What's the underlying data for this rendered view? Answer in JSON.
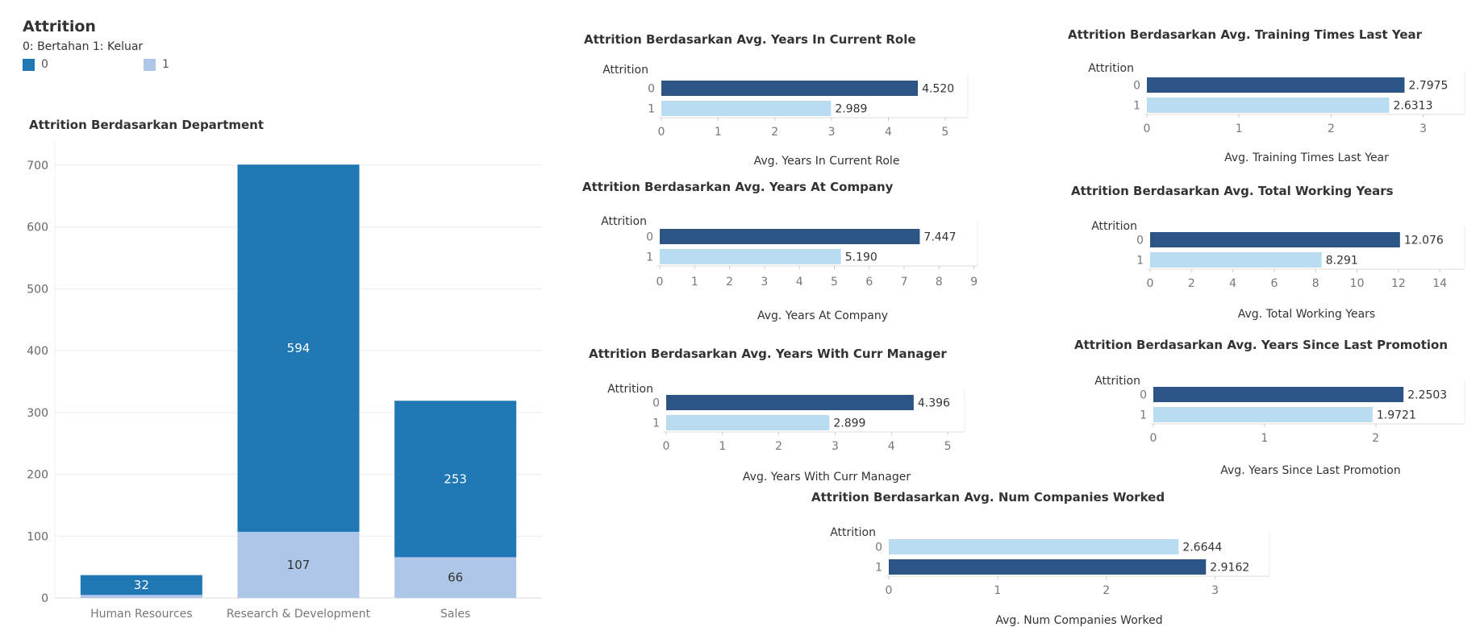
{
  "colors": {
    "dark_blue": "#2c5485",
    "light_blue": "#b9dcf0",
    "dept_dark": "#1f77b4",
    "dept_light": "#aec7e8"
  },
  "legend": {
    "title": "Attrition",
    "subtitle": "0: Bertahan 1: Keluar",
    "items": [
      {
        "label": "0",
        "color": "#1f77b4"
      },
      {
        "label": "1",
        "color": "#aec7e8"
      }
    ]
  },
  "chart_data": [
    {
      "id": "department",
      "type": "bar",
      "stacked": true,
      "title": "Attrition Berdasarkan Department",
      "categories": [
        "Human Resources",
        "Research & Development",
        "Sales"
      ],
      "series": [
        {
          "name": "0",
          "values": [
            32,
            594,
            253
          ]
        },
        {
          "name": "1",
          "values": [
            5,
            107,
            66
          ]
        }
      ],
      "value_labels": {
        "0": [
          "32",
          "594",
          "253"
        ],
        "1": [
          "",
          "107",
          "66"
        ]
      },
      "ylim": [
        0,
        700
      ],
      "yticks": [
        "0",
        "100",
        "200",
        "300",
        "400",
        "500",
        "600",
        "700"
      ],
      "grid": true
    },
    {
      "id": "years-current-role",
      "type": "bar",
      "orientation": "horizontal",
      "title": "Attrition Berdasarkan Avg. Years In Current Role",
      "ylabel": "Attrition",
      "xlabel": "Avg. Years In Current Role",
      "categories": [
        "0",
        "1"
      ],
      "values": [
        4.52,
        2.989
      ],
      "value_labels": [
        "4.520",
        "2.989"
      ],
      "bar_colors": [
        "#2c5485",
        "#b9dcf0"
      ],
      "xlim": [
        0,
        5.4
      ],
      "xticks": [
        "0",
        "1",
        "2",
        "3",
        "4",
        "5"
      ]
    },
    {
      "id": "years-at-company",
      "type": "bar",
      "orientation": "horizontal",
      "title": "Attrition Berdasarkan Avg. Years At Company",
      "ylabel": "Attrition",
      "xlabel": "Avg. Years At Company",
      "categories": [
        "0",
        "1"
      ],
      "values": [
        7.447,
        5.19
      ],
      "value_labels": [
        "7.447",
        "5.190"
      ],
      "bar_colors": [
        "#2c5485",
        "#b9dcf0"
      ],
      "xlim": [
        0,
        9.1
      ],
      "xticks": [
        "0",
        "1",
        "2",
        "3",
        "4",
        "5",
        "6",
        "7",
        "8",
        "9"
      ]
    },
    {
      "id": "years-curr-manager",
      "type": "bar",
      "orientation": "horizontal",
      "title": "Attrition Berdasarkan Avg. Years With Curr Manager",
      "ylabel": "Attrition",
      "xlabel": "Avg. Years With Curr Manager",
      "categories": [
        "0",
        "1"
      ],
      "values": [
        4.396,
        2.899
      ],
      "value_labels": [
        "4.396",
        "2.899"
      ],
      "bar_colors": [
        "#2c5485",
        "#b9dcf0"
      ],
      "xlim": [
        0,
        5.3
      ],
      "xticks": [
        "0",
        "1",
        "2",
        "3",
        "4",
        "5"
      ]
    },
    {
      "id": "training-times",
      "type": "bar",
      "orientation": "horizontal",
      "title": "Attrition Berdasarkan Avg. Training Times Last Year",
      "ylabel": "Attrition",
      "xlabel": "Avg. Training Times Last Year",
      "categories": [
        "0",
        "1"
      ],
      "values": [
        2.7975,
        2.6313
      ],
      "value_labels": [
        "2.7975",
        "2.6313"
      ],
      "bar_colors": [
        "#2c5485",
        "#b9dcf0"
      ],
      "xlim": [
        0,
        3.45
      ],
      "xticks": [
        "0",
        "1",
        "2",
        "3"
      ]
    },
    {
      "id": "total-working-years",
      "type": "bar",
      "orientation": "horizontal",
      "title": "Attrition Berdasarkan Avg. Total Working Years",
      "ylabel": "Attrition",
      "xlabel": "Avg. Total Working Years",
      "categories": [
        "0",
        "1"
      ],
      "values": [
        12.076,
        8.291
      ],
      "value_labels": [
        "12.076",
        "8.291"
      ],
      "bar_colors": [
        "#2c5485",
        "#b9dcf0"
      ],
      "xlim": [
        0,
        15.2
      ],
      "xticks": [
        "0",
        "2",
        "4",
        "6",
        "8",
        "10",
        "12",
        "14"
      ]
    },
    {
      "id": "years-since-promotion",
      "type": "bar",
      "orientation": "horizontal",
      "title": "Attrition Berdasarkan Avg. Years Since Last Promotion",
      "ylabel": "Attrition",
      "xlabel": "Avg. Years Since Last Promotion",
      "categories": [
        "0",
        "1"
      ],
      "values": [
        2.2503,
        1.9721
      ],
      "value_labels": [
        "2.2503",
        "1.9721"
      ],
      "bar_colors": [
        "#2c5485",
        "#b9dcf0"
      ],
      "xlim": [
        0,
        2.8
      ],
      "xticks": [
        "0",
        "1",
        "2"
      ]
    },
    {
      "id": "num-companies",
      "type": "bar",
      "orientation": "horizontal",
      "title": "Attrition Berdasarkan Avg. Num Companies Worked",
      "ylabel": "Attrition",
      "xlabel": "Avg. Num Companies Worked",
      "categories": [
        "0",
        "1"
      ],
      "values": [
        2.6644,
        2.9162
      ],
      "value_labels": [
        "2.6644",
        "2.9162"
      ],
      "bar_colors": [
        "#b9dcf0",
        "#2c5485"
      ],
      "xlim": [
        0,
        3.5
      ],
      "xticks": [
        "0",
        "1",
        "2",
        "3"
      ]
    }
  ]
}
